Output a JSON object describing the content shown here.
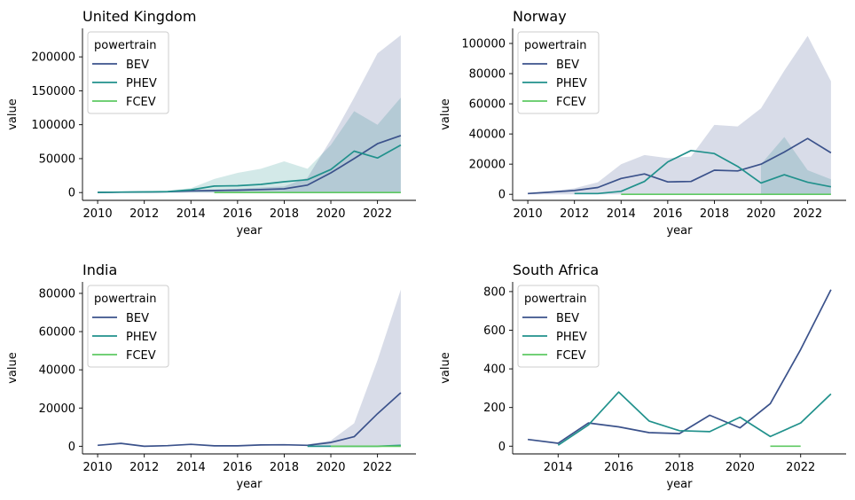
{
  "legend_title": "powertrain",
  "colors": {
    "BEV": "#3b528b",
    "PHEV": "#21918c",
    "FCEV": "#5ec962"
  },
  "chart_data": [
    {
      "type": "line",
      "title": "United Kingdom",
      "xlabel": "year",
      "ylabel": "value",
      "xlim": [
        2009.35,
        2023.65
      ],
      "ylim": [
        -11500,
        242000
      ],
      "xticks": [
        2010,
        2012,
        2014,
        2016,
        2018,
        2020,
        2022
      ],
      "yticks": [
        0,
        50000,
        100000,
        150000,
        200000
      ],
      "ytick_labels": [
        "0",
        "50000",
        "100000",
        "150000",
        "200000"
      ],
      "legend_position": "top-left",
      "series": [
        {
          "name": "BEV",
          "x": [
            2010,
            2011,
            2012,
            2013,
            2014,
            2015,
            2016,
            2017,
            2018,
            2019,
            2020,
            2021,
            2022,
            2023
          ],
          "values": [
            200,
            500,
            800,
            1200,
            2500,
            3000,
            3500,
            4500,
            5500,
            11000,
            29000,
            50000,
            72000,
            84000
          ]
        },
        {
          "name": "PHEV",
          "x": [
            2010,
            2011,
            2012,
            2013,
            2014,
            2015,
            2016,
            2017,
            2018,
            2019,
            2020,
            2021,
            2022,
            2023
          ],
          "values": [
            300,
            600,
            900,
            1500,
            4000,
            9500,
            10000,
            12000,
            16000,
            19000,
            34000,
            61000,
            51000,
            70000
          ]
        },
        {
          "name": "FCEV",
          "x": [
            2015,
            2016,
            2017,
            2018,
            2019,
            2020,
            2021,
            2022,
            2023
          ],
          "values": [
            0,
            0,
            0,
            0,
            0,
            0,
            0,
            0,
            0
          ]
        }
      ],
      "bands": [
        {
          "series": "PHEV",
          "x": [
            2010,
            2011,
            2012,
            2013,
            2014,
            2015,
            2016,
            2017,
            2018,
            2019,
            2020,
            2021,
            2022,
            2023
          ],
          "upper": [
            500,
            900,
            1500,
            2500,
            6500,
            20000,
            29000,
            35000,
            46000,
            35000,
            70000,
            120000,
            100000,
            140000
          ],
          "lower": [
            0,
            0,
            0,
            0,
            0,
            0,
            0,
            0,
            0,
            0,
            0,
            0,
            0,
            0
          ]
        },
        {
          "series": "BEV",
          "x": [
            2010,
            2011,
            2012,
            2013,
            2014,
            2015,
            2016,
            2017,
            2018,
            2019,
            2020,
            2021,
            2022,
            2023
          ],
          "upper": [
            300,
            800,
            1500,
            2000,
            3500,
            4500,
            5500,
            7500,
            9000,
            22000,
            78000,
            140000,
            205000,
            232000
          ],
          "lower": [
            0,
            0,
            0,
            0,
            0,
            0,
            0,
            0,
            0,
            0,
            0,
            0,
            0,
            0
          ]
        }
      ]
    },
    {
      "type": "line",
      "title": "Norway",
      "xlabel": "year",
      "ylabel": "value",
      "xlim": [
        2009.35,
        2023.65
      ],
      "ylim": [
        -4000,
        110000
      ],
      "xticks": [
        2010,
        2012,
        2014,
        2016,
        2018,
        2020,
        2022
      ],
      "yticks": [
        0,
        20000,
        40000,
        60000,
        80000,
        100000
      ],
      "ytick_labels": [
        "0",
        "20000",
        "40000",
        "60000",
        "80000",
        "100000"
      ],
      "legend_position": "top-left",
      "series": [
        {
          "name": "BEV",
          "x": [
            2010,
            2011,
            2012,
            2013,
            2014,
            2015,
            2016,
            2017,
            2018,
            2019,
            2020,
            2021,
            2022,
            2023
          ],
          "values": [
            500,
            1500,
            2500,
            4500,
            10500,
            13500,
            8200,
            8500,
            16000,
            15500,
            20000,
            28000,
            37000,
            27500
          ]
        },
        {
          "name": "PHEV",
          "x": [
            2012,
            2013,
            2014,
            2015,
            2016,
            2017,
            2018,
            2019,
            2020,
            2021,
            2022,
            2023
          ],
          "values": [
            500,
            500,
            2000,
            8500,
            21500,
            29000,
            27000,
            18500,
            7500,
            13000,
            8000,
            5000
          ]
        },
        {
          "name": "FCEV",
          "x": [
            2014,
            2015,
            2016,
            2017,
            2018,
            2019,
            2020,
            2021,
            2022,
            2023
          ],
          "values": [
            0,
            0,
            0,
            0,
            0,
            0,
            0,
            0,
            0,
            0
          ]
        }
      ],
      "bands": [
        {
          "series": "PHEV",
          "x": [
            2020,
            2021,
            2022,
            2023
          ],
          "upper": [
            20000,
            38000,
            16000,
            10000
          ],
          "lower": [
            0,
            0,
            0,
            0
          ]
        },
        {
          "series": "BEV",
          "x": [
            2010,
            2011,
            2012,
            2013,
            2014,
            2015,
            2016,
            2017,
            2018,
            2019,
            2020,
            2021,
            2022,
            2023
          ],
          "upper": [
            600,
            2000,
            4000,
            8000,
            20000,
            26000,
            24000,
            25000,
            46000,
            45000,
            57000,
            82000,
            105000,
            75000
          ],
          "lower": [
            0,
            0,
            0,
            0,
            0,
            0,
            0,
            0,
            0,
            0,
            0,
            0,
            0,
            0
          ]
        }
      ]
    },
    {
      "type": "line",
      "title": "India",
      "xlabel": "year",
      "ylabel": "value",
      "xlim": [
        2009.35,
        2023.65
      ],
      "ylim": [
        -4000,
        86000
      ],
      "xticks": [
        2010,
        2012,
        2014,
        2016,
        2018,
        2020,
        2022
      ],
      "yticks": [
        0,
        20000,
        40000,
        60000,
        80000
      ],
      "ytick_labels": [
        "0",
        "20000",
        "40000",
        "60000",
        "80000"
      ],
      "legend_position": "top-left",
      "series": [
        {
          "name": "BEV",
          "x": [
            2010,
            2011,
            2012,
            2013,
            2014,
            2015,
            2016,
            2017,
            2018,
            2019,
            2020,
            2021,
            2022,
            2023
          ],
          "values": [
            500,
            1500,
            0,
            300,
            1000,
            200,
            200,
            700,
            800,
            500,
            2000,
            5000,
            17000,
            28000
          ]
        },
        {
          "name": "PHEV",
          "x": [
            2019,
            2020,
            2021,
            2022,
            2023
          ],
          "values": [
            0,
            0,
            0,
            0,
            500
          ]
        },
        {
          "name": "FCEV",
          "x": [
            2020,
            2021,
            2022,
            2023
          ],
          "values": [
            0,
            0,
            0,
            0
          ]
        }
      ],
      "bands": [
        {
          "series": "BEV",
          "x": [
            2019,
            2020,
            2021,
            2022,
            2023
          ],
          "upper": [
            1000,
            3000,
            12000,
            45000,
            82000
          ],
          "lower": [
            0,
            0,
            0,
            0,
            0
          ]
        }
      ]
    },
    {
      "type": "line",
      "title": "South Africa",
      "xlabel": "year",
      "ylabel": "value",
      "xlim": [
        2012.5,
        2023.5
      ],
      "ylim": [
        -40,
        850
      ],
      "xticks": [
        2014,
        2016,
        2018,
        2020,
        2022
      ],
      "yticks": [
        0,
        200,
        400,
        600,
        800
      ],
      "ytick_labels": [
        "0",
        "200",
        "400",
        "600",
        "800"
      ],
      "legend_position": "top-left",
      "series": [
        {
          "name": "BEV",
          "x": [
            2013,
            2014,
            2015,
            2016,
            2017,
            2018,
            2019,
            2020,
            2021,
            2022,
            2023
          ],
          "values": [
            35,
            15,
            120,
            100,
            70,
            65,
            160,
            95,
            220,
            500,
            810
          ]
        },
        {
          "name": "PHEV",
          "x": [
            2014,
            2015,
            2016,
            2017,
            2018,
            2019,
            2020,
            2021,
            2022,
            2023
          ],
          "values": [
            5,
            110,
            280,
            130,
            80,
            75,
            150,
            50,
            120,
            270
          ]
        },
        {
          "name": "FCEV",
          "x": [
            2021,
            2022
          ],
          "values": [
            0,
            0
          ]
        }
      ],
      "bands": []
    }
  ]
}
